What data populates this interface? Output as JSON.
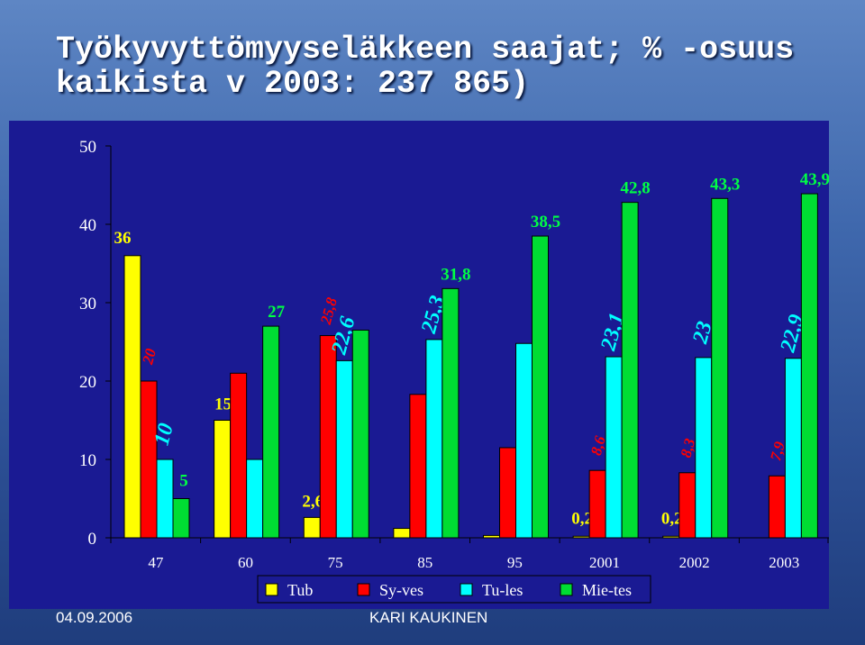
{
  "slide": {
    "title": "Työkyvyttömyyseläkkeen saajat; % -osuus\nkaikista v 2003: 237 865)",
    "date": "04.09.2006",
    "author": "KARI KAUKINEN"
  },
  "chart_data": {
    "type": "bar",
    "title": "",
    "xlabel": "",
    "ylabel": "",
    "ylim": [
      0,
      50
    ],
    "yticks": [
      "0",
      "10",
      "20",
      "30",
      "40",
      "50"
    ],
    "categories": [
      "47",
      "60",
      "75",
      "85",
      "95",
      "2001",
      "2002",
      "2003"
    ],
    "grid": false,
    "legend_position": "bottom",
    "series": [
      {
        "name": "Tub",
        "color": "#ffff00",
        "values": [
          36,
          15,
          2.6,
          1.2,
          0.3,
          0.2,
          0.2,
          0
        ],
        "labels": [
          "36",
          "15",
          "2,6",
          "",
          "",
          "0,2",
          "0,2",
          ""
        ]
      },
      {
        "name": "Sy-ves",
        "color": "#ff0000",
        "values": [
          20,
          21,
          25.8,
          18.3,
          11.5,
          8.6,
          8.3,
          7.9
        ],
        "labels": [
          "20",
          "",
          "25,8",
          "",
          "",
          "8,6",
          "8,3",
          "7,9"
        ]
      },
      {
        "name": "Tu-les",
        "color": "#00ffff",
        "values": [
          10,
          10,
          22.6,
          25.3,
          24.8,
          23.1,
          23,
          22.9
        ],
        "labels": [
          "10",
          "",
          "22,6",
          "25,3",
          "",
          "23,1",
          "23",
          "22,9"
        ]
      },
      {
        "name": "Mie-tes",
        "color": "#00dd33",
        "values": [
          5,
          27,
          26.5,
          31.8,
          38.5,
          42.8,
          43.3,
          43.9
        ],
        "labels": [
          "5",
          "27",
          "",
          "31,8",
          "38,5",
          "42,8",
          "43,3",
          "43,9"
        ]
      }
    ]
  }
}
